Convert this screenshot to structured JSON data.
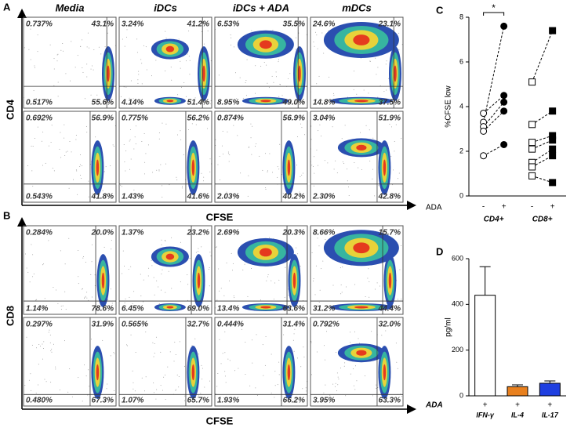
{
  "flow": {
    "columns": [
      "Media",
      "iDCs",
      "iDCs + ADA",
      "mDCs"
    ],
    "x_label": "CFSE",
    "groups": [
      {
        "letter": "A",
        "y_label": "CD4",
        "rows": [
          [
            [
              "0.737%",
              "43.1%",
              "0.517%",
              "55.6%"
            ],
            [
              "3.24%",
              "41.2%",
              "4.14%",
              "51.4%"
            ],
            [
              "6.53%",
              "35.5%",
              "8.95%",
              "49.0%"
            ],
            [
              "24.6%",
              "23.1%",
              "14.8%",
              "37.5%"
            ]
          ],
          [
            [
              "0.692%",
              "56.9%",
              "0.543%",
              "41.8%"
            ],
            [
              "0.775%",
              "56.2%",
              "1.43%",
              "41.6%"
            ],
            [
              "0.874%",
              "56.9%",
              "2.03%",
              "40.2%"
            ],
            [
              "3.04%",
              "51.9%",
              "2.30%",
              "42.8%"
            ]
          ]
        ]
      },
      {
        "letter": "B",
        "y_label": "CD8",
        "rows": [
          [
            [
              "0.284%",
              "20.0%",
              "1.14%",
              "78.6%"
            ],
            [
              "1.37%",
              "23.2%",
              "6.45%",
              "69.0%"
            ],
            [
              "2.69%",
              "20.3%",
              "13.4%",
              "63.6%"
            ],
            [
              "8.66%",
              "15.7%",
              "31.2%",
              "44.4%"
            ]
          ],
          [
            [
              "0.297%",
              "31.9%",
              "0.480%",
              "67.3%"
            ],
            [
              "0.565%",
              "32.7%",
              "1.07%",
              "65.7%"
            ],
            [
              "0.444%",
              "31.4%",
              "1.93%",
              "66.2%"
            ],
            [
              "0.792%",
              "32.0%",
              "3.95%",
              "63.3%"
            ]
          ]
        ]
      }
    ]
  },
  "chart_data": [
    {
      "type": "paired-dot",
      "letter": "C",
      "y_label": "%CFSE low",
      "x_label": "ADA",
      "categories": [
        "-",
        "+"
      ],
      "ylim": [
        0,
        8
      ],
      "yticks": [
        0,
        2,
        4,
        6,
        8
      ],
      "annotation": "*",
      "groups": [
        {
          "name": "CD4+",
          "marker": "circle",
          "before": [
            3.3,
            3.7,
            3.1,
            2.9,
            1.8
          ],
          "after": [
            7.6,
            4.5,
            4.2,
            3.8,
            2.3
          ]
        },
        {
          "name": "CD8+",
          "marker": "square",
          "before": [
            5.1,
            3.2,
            2.4,
            2.1,
            1.5,
            1.3,
            0.9
          ],
          "after": [
            7.4,
            3.8,
            2.7,
            2.5,
            2.1,
            1.8,
            0.6
          ]
        }
      ]
    },
    {
      "type": "bar",
      "letter": "D",
      "y_label": "pg/ml",
      "x_label": "ADA",
      "categories": [
        "IFN-γ",
        "IL-4",
        "IL-17"
      ],
      "row_marks": [
        "+",
        "+",
        "+"
      ],
      "values": [
        440,
        40,
        55
      ],
      "errors": [
        125,
        8,
        10
      ],
      "colors": [
        "#ffffff",
        "#e8801e",
        "#1f3fe0"
      ],
      "ylim": [
        0,
        600
      ],
      "yticks": [
        0,
        200,
        400,
        600
      ]
    }
  ]
}
